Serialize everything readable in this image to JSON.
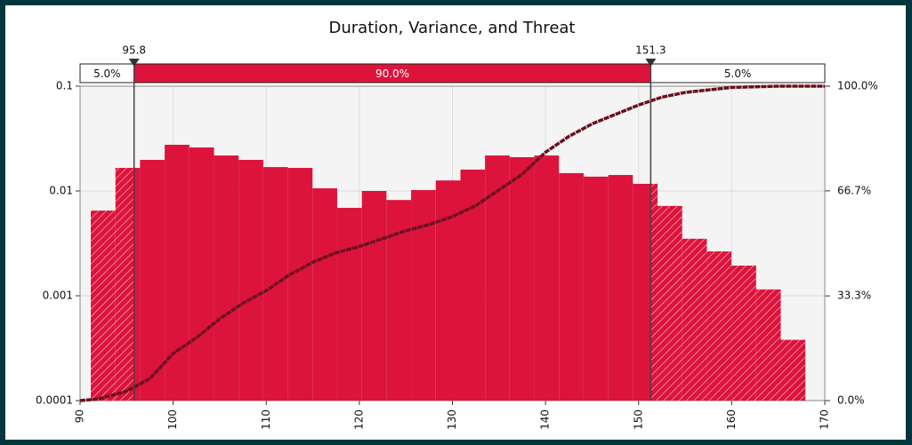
{
  "chart_data": {
    "type": "histogram",
    "title": "Duration, Variance, and Threat",
    "bins": [
      91.15,
      93.8,
      96.44,
      99.09,
      101.74,
      104.39,
      107.03,
      109.68,
      112.33,
      114.97,
      117.62,
      120.27,
      122.91,
      125.56,
      128.21,
      130.86,
      133.5,
      136.15,
      138.8,
      141.44,
      144.09,
      146.74,
      149.38,
      152.03,
      154.68,
      157.33,
      159.97,
      162.62,
      165.27,
      167.91
    ],
    "values": [
      0.0065,
      0.0166,
      0.0198,
      0.0276,
      0.026,
      0.0218,
      0.0198,
      0.0169,
      0.0166,
      0.0106,
      0.0069,
      0.01,
      0.0082,
      0.0102,
      0.0126,
      0.016,
      0.0218,
      0.021,
      0.0218,
      0.0148,
      0.0137,
      0.0142,
      0.0117,
      0.0072,
      0.0035,
      0.00265,
      0.00194,
      0.00115,
      0.00038
    ],
    "color": "#dc143c",
    "log_y": true,
    "xlim": [
      90,
      170
    ],
    "xticks": [
      90,
      100,
      110,
      120,
      130,
      140,
      150,
      160,
      170
    ],
    "ylim": [
      0.0001,
      0.1
    ],
    "yticks": [
      0.0001,
      0.001,
      0.01,
      0.1
    ],
    "y2lim": [
      0,
      100
    ],
    "y2ticks": [
      {
        "value": 0,
        "label": "0.0%"
      },
      {
        "value": 33.3,
        "label": "33.3%"
      },
      {
        "value": 66.7,
        "label": "66.7%"
      },
      {
        "value": 100,
        "label": "100.0%"
      }
    ],
    "grid": true,
    "cumulative": {
      "axis": "y2",
      "color": "#6b0f1f",
      "x": [
        90,
        92,
        95,
        97.5,
        100,
        102.5,
        105,
        107.5,
        110,
        112.5,
        115,
        117.5,
        120,
        122.5,
        125,
        127.5,
        130,
        132.5,
        135,
        137.5,
        140,
        142.5,
        145,
        147.5,
        150,
        152.5,
        155,
        160,
        165,
        170
      ],
      "values": [
        0,
        0.5,
        3,
        7,
        15,
        20,
        26,
        31,
        35,
        40,
        44,
        47,
        49,
        51.5,
        54,
        56,
        58.5,
        62,
        67,
        72,
        79,
        84,
        88,
        91,
        94,
        96.5,
        98,
        99.6,
        100,
        100
      ]
    },
    "percentiles": [
      95.8,
      151.3
    ],
    "bands": {
      "values": [
        5,
        90,
        5
      ],
      "value_labels": [
        "5.0%",
        "90.0%",
        "5.0%"
      ]
    }
  }
}
